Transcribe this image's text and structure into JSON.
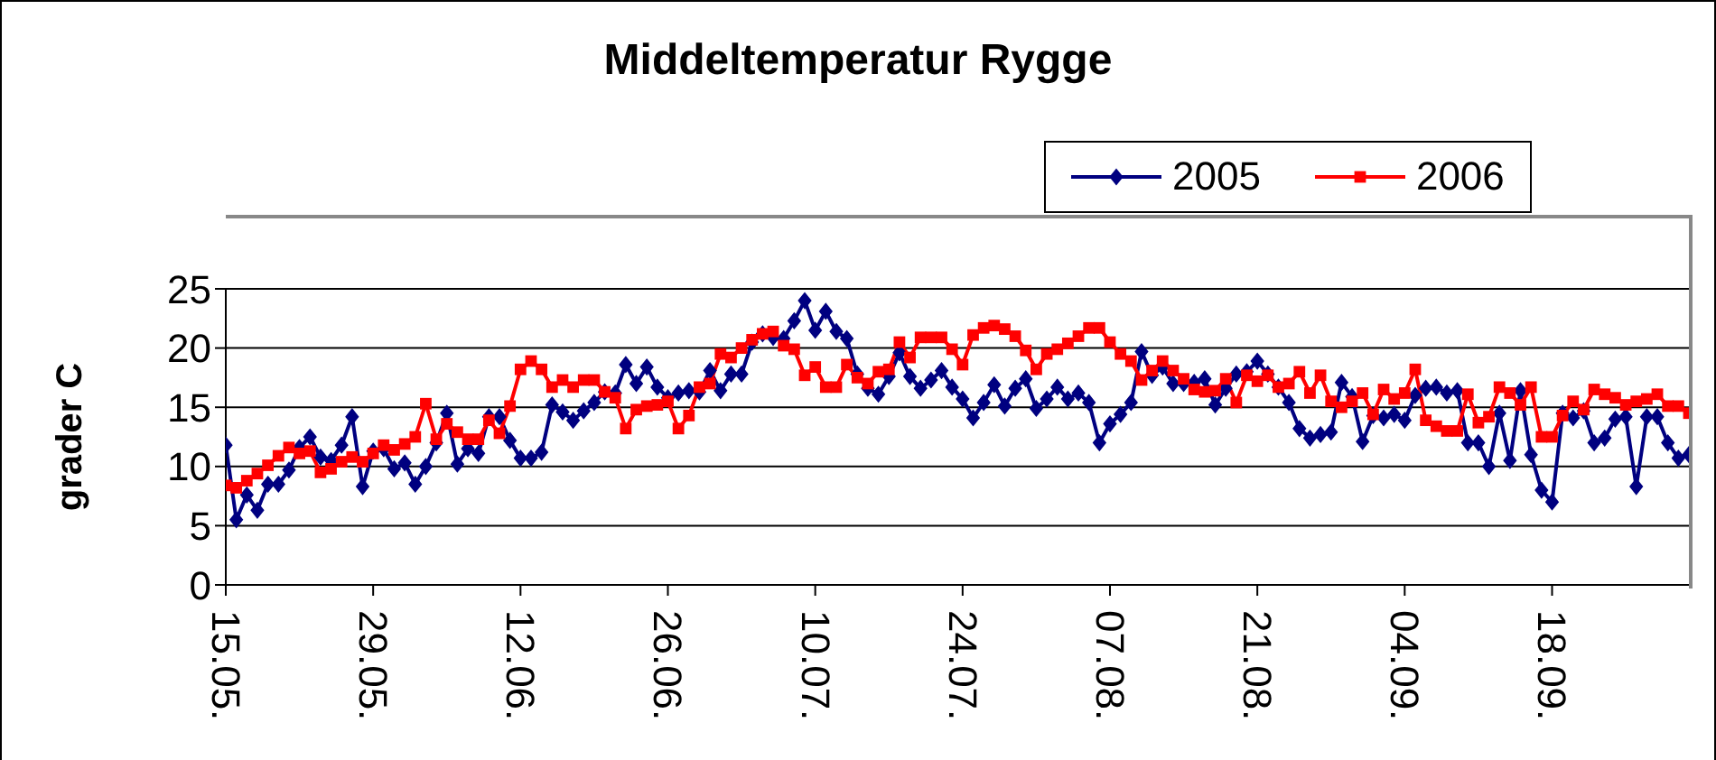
{
  "chart_data": {
    "type": "line",
    "title": "Middeltemperatur Rygge",
    "ylabel": "grader C",
    "categories": [
      "15.05.",
      null,
      null,
      null,
      null,
      null,
      null,
      null,
      null,
      null,
      null,
      null,
      null,
      null,
      "29.05.",
      null,
      null,
      null,
      null,
      null,
      null,
      null,
      null,
      null,
      null,
      null,
      null,
      null,
      "12.06.",
      null,
      null,
      null,
      null,
      null,
      null,
      null,
      null,
      null,
      null,
      null,
      null,
      null,
      "26.06.",
      null,
      null,
      null,
      null,
      null,
      null,
      null,
      null,
      null,
      null,
      null,
      null,
      null,
      "10.07.",
      null,
      null,
      null,
      null,
      null,
      null,
      null,
      null,
      null,
      null,
      null,
      null,
      null,
      "24.07.",
      null,
      null,
      null,
      null,
      null,
      null,
      null,
      null,
      null,
      null,
      null,
      null,
      null,
      "07.08.",
      null,
      null,
      null,
      null,
      null,
      null,
      null,
      null,
      null,
      null,
      null,
      null,
      null,
      "21.08.",
      null,
      null,
      null,
      null,
      null,
      null,
      null,
      null,
      null,
      null,
      null,
      null,
      null,
      "04.09.",
      null,
      null,
      null,
      null,
      null,
      null,
      null,
      null,
      null,
      null,
      null,
      null,
      null,
      "18.09.",
      null,
      null,
      null,
      null,
      null,
      null,
      null,
      null,
      null,
      null,
      null,
      null,
      null
    ],
    "series": [
      {
        "name": "2005",
        "color": "#000080",
        "marker": "diamond",
        "values": [
          11.8,
          5.5,
          7.6,
          6.3,
          8.5,
          8.5,
          9.7,
          11.6,
          12.5,
          10.8,
          10.5,
          11.8,
          14.2,
          8.3,
          11.3,
          11.5,
          9.8,
          10.3,
          8.5,
          10,
          12,
          14.5,
          10.2,
          11.5,
          11.1,
          14.2,
          14.2,
          12.2,
          10.7,
          10.7,
          11.2,
          15.2,
          14.6,
          13.9,
          14.7,
          15.4,
          16.3,
          16.2,
          18.6,
          17,
          18.4,
          16.7,
          15.8,
          16.2,
          16.4,
          16.3,
          18.1,
          16.4,
          17.8,
          17.8,
          20.5,
          21.2,
          20.9,
          20.8,
          22.3,
          24,
          21.5,
          23.1,
          21.4,
          20.8,
          17.8,
          16.6,
          16.1,
          17.6,
          19.6,
          17.6,
          16.6,
          17.3,
          18.1,
          16.7,
          15.7,
          14.1,
          15.4,
          16.9,
          15.1,
          16.6,
          17.4,
          14.9,
          15.7,
          16.7,
          15.7,
          16.2,
          15.4,
          12,
          13.6,
          14.4,
          15.4,
          19.7,
          17.7,
          18.4,
          17,
          17,
          17.1,
          17.4,
          15.2,
          16.6,
          17.8,
          18,
          18.9,
          17.8,
          16.7,
          15.4,
          13.2,
          12.4,
          12.7,
          12.9,
          17.1,
          15.9,
          12.1,
          14.3,
          14.1,
          14.4,
          13.9,
          16,
          16.6,
          16.7,
          16.2,
          16.4,
          12,
          12,
          10,
          14.5,
          10.5,
          16.4,
          11,
          8,
          7,
          14.5,
          14.1,
          14.7,
          12,
          12.4,
          14,
          14.2,
          8.3,
          14.2,
          14.2,
          12,
          10.7,
          11
        ]
      },
      {
        "name": "2006",
        "color": "#ff0000",
        "marker": "square",
        "values": [
          8.4,
          8.2,
          8.8,
          9.4,
          10.1,
          10.9,
          11.6,
          11.1,
          11.3,
          9.5,
          9.8,
          10.4,
          10.8,
          10.4,
          11.1,
          11.8,
          11.4,
          11.9,
          12.5,
          15.3,
          12.3,
          13.6,
          12.9,
          12.3,
          12.3,
          13.9,
          12.8,
          15.1,
          18.2,
          18.9,
          18.2,
          16.7,
          17.3,
          16.7,
          17.3,
          17.3,
          16.3,
          15.8,
          13.2,
          14.8,
          15.1,
          15.2,
          15.5,
          13.2,
          14.3,
          16.7,
          17,
          19.5,
          19.2,
          20,
          20.7,
          21.2,
          21.4,
          20.2,
          19.9,
          17.7,
          18.4,
          16.7,
          16.7,
          18.6,
          17.5,
          17,
          18,
          18.2,
          20.5,
          19.2,
          20.9,
          20.9,
          20.9,
          19.9,
          18.6,
          21.1,
          21.7,
          21.9,
          21.6,
          21,
          19.8,
          18.2,
          19.5,
          19.9,
          20.4,
          21,
          21.7,
          21.7,
          20.5,
          19.5,
          18.9,
          17.3,
          18.1,
          18.9,
          18.1,
          17.4,
          16.5,
          16.3,
          16.4,
          17.4,
          15.4,
          17.7,
          17.2,
          17.7,
          16.7,
          17,
          18,
          16.2,
          17.7,
          15.5,
          15,
          15.5,
          16.2,
          14.4,
          16.5,
          15.7,
          16.2,
          18.2,
          13.9,
          13.4,
          13,
          13,
          16.1,
          13.7,
          14.2,
          16.7,
          16.2,
          15.2,
          16.7,
          12.5,
          12.5,
          14.3,
          15.5,
          14.8,
          16.5,
          16.1,
          15.8,
          15.2,
          15.5,
          15.7,
          16.1,
          15.1,
          15.1,
          14.5
        ]
      }
    ],
    "ylim": [
      0,
      25
    ],
    "yticks": [
      0,
      5,
      10,
      15,
      20,
      25
    ],
    "grid": "y",
    "legend": "top right",
    "line_style": "solid"
  }
}
